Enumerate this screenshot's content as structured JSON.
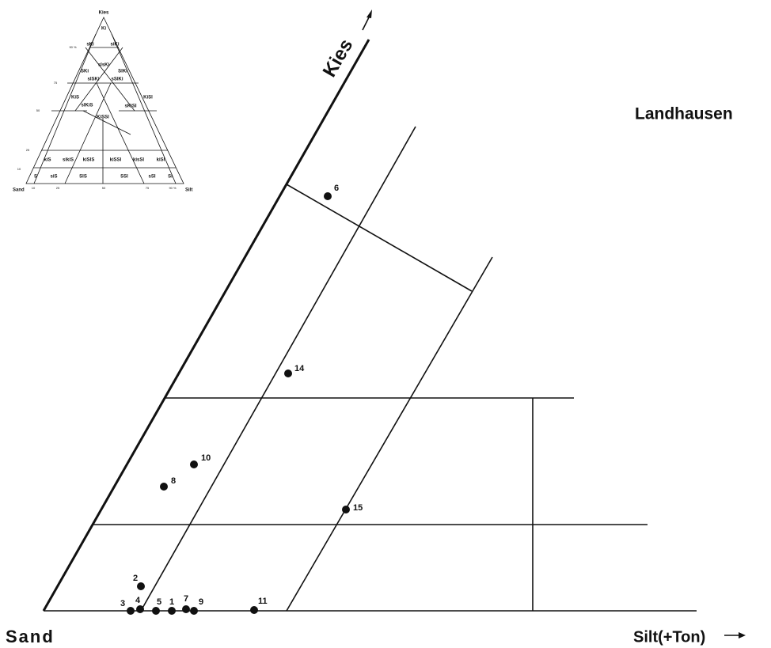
{
  "title": "Landhausen",
  "axes": {
    "apex": "Kies",
    "left": "Sand",
    "right": "Silt(+Ton)"
  },
  "points": [
    {
      "label": "6"
    },
    {
      "label": "14"
    },
    {
      "label": "10"
    },
    {
      "label": "8"
    },
    {
      "label": "15"
    },
    {
      "label": "2"
    },
    {
      "label": "3"
    },
    {
      "label": "4"
    },
    {
      "label": "5"
    },
    {
      "label": "1"
    },
    {
      "label": "7"
    },
    {
      "label": "9"
    },
    {
      "label": "11"
    }
  ],
  "inset": {
    "apex": "Kies",
    "left": "Sand",
    "right": "Silt",
    "fields": [
      "Ki",
      "sKi",
      "siKi",
      "slsKi",
      "SKi",
      "SlKi",
      "slSKi",
      "sSlKi",
      "KiS",
      "slKiS",
      "KiSSl",
      "sKiSl",
      "KiSl",
      "kiS",
      "sikiS",
      "kiSlS",
      "kiSSl",
      "kisSl",
      "kiSl",
      "S",
      "siS",
      "SlS",
      "SSl",
      "sSl",
      "Sl"
    ],
    "ticks": [
      "10",
      "25",
      "50",
      "75",
      "90 %"
    ]
  }
}
